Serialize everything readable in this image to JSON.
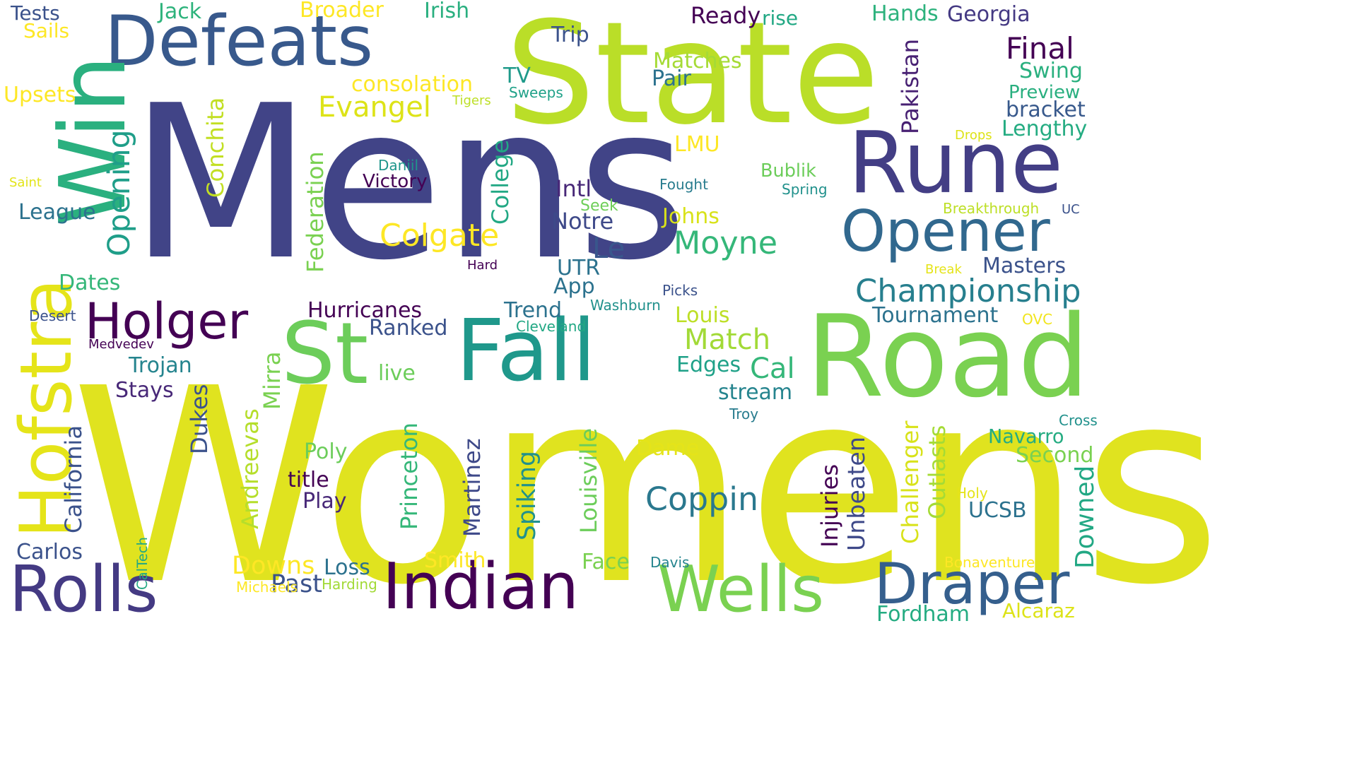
{
  "words": [
    {
      "text": "Mens",
      "color": "#414487"
    },
    {
      "text": "Womens",
      "color": "#e0e31f"
    },
    {
      "text": "State",
      "color": "#bade28"
    },
    {
      "text": "Defeats",
      "color": "#38598c"
    },
    {
      "text": "Rune",
      "color": "#433e85"
    },
    {
      "text": "Road",
      "color": "#7ad151"
    },
    {
      "text": "Fall",
      "color": "#1f988b"
    },
    {
      "text": "St",
      "color": "#6ccd5a"
    },
    {
      "text": "Win",
      "color": "#2ab07f"
    },
    {
      "text": "Hofstra",
      "color": "#e5e419"
    },
    {
      "text": "Opener",
      "color": "#31688e"
    },
    {
      "text": "Indian",
      "color": "#440154"
    },
    {
      "text": "Rolls",
      "color": "#443a83"
    },
    {
      "text": "Draper",
      "color": "#355f8d"
    },
    {
      "text": "Wells",
      "color": "#7ad151"
    },
    {
      "text": "Holger",
      "color": "#440154"
    },
    {
      "text": "Championship",
      "color": "#277f8e"
    },
    {
      "text": "Coppin",
      "color": "#2a788e"
    },
    {
      "text": "Colgate",
      "color": "#fde725"
    },
    {
      "text": "Moyne",
      "color": "#35b779"
    },
    {
      "text": "Evangel",
      "color": "#dde318"
    },
    {
      "text": "Final",
      "color": "#440154"
    },
    {
      "text": "Match",
      "color": "#a2da37"
    },
    {
      "text": "Tests",
      "color": "#3b528b"
    },
    {
      "text": "Jack",
      "color": "#2eb37c"
    },
    {
      "text": "Broader",
      "color": "#fde725"
    },
    {
      "text": "Irish",
      "color": "#29af7f"
    },
    {
      "text": "Ready",
      "color": "#440154"
    },
    {
      "text": "rise",
      "color": "#22a884"
    },
    {
      "text": "Hands",
      "color": "#2db27d"
    },
    {
      "text": "Georgia",
      "color": "#443983"
    },
    {
      "text": "Sails",
      "color": "#fde725"
    },
    {
      "text": "Trip",
      "color": "#3b528b"
    },
    {
      "text": "Matches",
      "color": "#a5db36"
    },
    {
      "text": "Pair",
      "color": "#2c728e"
    },
    {
      "text": "Swing",
      "color": "#2ab07f"
    },
    {
      "text": "Preview",
      "color": "#29af7f"
    },
    {
      "text": "bracket",
      "color": "#38598c"
    },
    {
      "text": "Lengthy",
      "color": "#25ac82"
    },
    {
      "text": "consolation",
      "color": "#fde725"
    },
    {
      "text": "TV",
      "color": "#1f9a8a"
    },
    {
      "text": "Sweeps",
      "color": "#1fa188"
    },
    {
      "text": "Tigers",
      "color": "#bddf26"
    },
    {
      "text": "Upsets",
      "color": "#fde725"
    },
    {
      "text": "Pakistan",
      "color": "#482173"
    },
    {
      "text": "Drops",
      "color": "#dde318"
    },
    {
      "text": "Conchita",
      "color": "#c2df23"
    },
    {
      "text": "Opening",
      "color": "#1f9e89"
    },
    {
      "text": "Federation",
      "color": "#7ad151"
    },
    {
      "text": "College",
      "color": "#22a884"
    },
    {
      "text": "LMU",
      "color": "#fde725"
    },
    {
      "text": "Daniil",
      "color": "#1f968b"
    },
    {
      "text": "Victory",
      "color": "#440154"
    },
    {
      "text": "Intl",
      "color": "#482878"
    },
    {
      "text": "Fought",
      "color": "#287c8e"
    },
    {
      "text": "Bublik",
      "color": "#6ccd5a"
    },
    {
      "text": "Spring",
      "color": "#21918c"
    },
    {
      "text": "Saint",
      "color": "#e2e418"
    },
    {
      "text": "League",
      "color": "#2c728e"
    },
    {
      "text": "Seek",
      "color": "#6ece58"
    },
    {
      "text": "Notre",
      "color": "#3e4989"
    },
    {
      "text": "Johns",
      "color": "#d8e219"
    },
    {
      "text": "Breakthrough",
      "color": "#bddf26"
    },
    {
      "text": "UC",
      "color": "#3b528b"
    },
    {
      "text": "Le",
      "color": "#39568c"
    },
    {
      "text": "Hard",
      "color": "#440154"
    },
    {
      "text": "UTR",
      "color": "#2c728e"
    },
    {
      "text": "Break",
      "color": "#e5e419"
    },
    {
      "text": "Masters",
      "color": "#3b528b"
    },
    {
      "text": "Dates",
      "color": "#35b779"
    },
    {
      "text": "App",
      "color": "#2c728e"
    },
    {
      "text": "Picks",
      "color": "#3b528b"
    },
    {
      "text": "Desert",
      "color": "#3b528b"
    },
    {
      "text": "Hurricanes",
      "color": "#440154"
    },
    {
      "text": "Trend",
      "color": "#2c728e"
    },
    {
      "text": "Washburn",
      "color": "#21918c"
    },
    {
      "text": "Louis",
      "color": "#bddf26"
    },
    {
      "text": "Tournament",
      "color": "#2c728e"
    },
    {
      "text": "OVC",
      "color": "#f1e51d"
    },
    {
      "text": "Ranked",
      "color": "#3b528b"
    },
    {
      "text": "Cleveland",
      "color": "#22a884"
    },
    {
      "text": "Medvedev",
      "color": "#440154"
    },
    {
      "text": "Trojan",
      "color": "#25848e"
    },
    {
      "text": "live",
      "color": "#6ccd5a"
    },
    {
      "text": "Edges",
      "color": "#1fa188"
    },
    {
      "text": "Cal",
      "color": "#35b779"
    },
    {
      "text": "stream",
      "color": "#25848e"
    },
    {
      "text": "Stays",
      "color": "#482878"
    },
    {
      "text": "Dukes",
      "color": "#3b528b"
    },
    {
      "text": "Mirra",
      "color": "#7ad151"
    },
    {
      "text": "Andreevas",
      "color": "#b5de2b"
    },
    {
      "text": "California",
      "color": "#3b528b"
    },
    {
      "text": "Princeton",
      "color": "#35b779"
    },
    {
      "text": "Martinez",
      "color": "#3e4989"
    },
    {
      "text": "Spiking",
      "color": "#21918c"
    },
    {
      "text": "Louisville",
      "color": "#6ccd5a"
    },
    {
      "text": "Injuries",
      "color": "#440154"
    },
    {
      "text": "Unbeaten",
      "color": "#3e4989"
    },
    {
      "text": "Challenger",
      "color": "#d8e219"
    },
    {
      "text": "Outlasts",
      "color": "#a5db36"
    },
    {
      "text": "Troy",
      "color": "#287c8e"
    },
    {
      "text": "Navarro",
      "color": "#25ac82"
    },
    {
      "text": "Second",
      "color": "#7ad151"
    },
    {
      "text": "Cross",
      "color": "#21918c"
    },
    {
      "text": "Poly",
      "color": "#6ccd5a"
    },
    {
      "text": "Dame",
      "color": "#e5e419"
    },
    {
      "text": "title",
      "color": "#440154"
    },
    {
      "text": "Play",
      "color": "#482878"
    },
    {
      "text": "Holy",
      "color": "#e5e419"
    },
    {
      "text": "UCSB",
      "color": "#2c728e"
    },
    {
      "text": "Downed",
      "color": "#22a884"
    },
    {
      "text": "Carlos",
      "color": "#3b528b"
    },
    {
      "text": "CalTech",
      "color": "#22a884"
    },
    {
      "text": "Downs",
      "color": "#fde725"
    },
    {
      "text": "Loss",
      "color": "#2c728e"
    },
    {
      "text": "Smith",
      "color": "#fde725"
    },
    {
      "text": "Face",
      "color": "#7ad151"
    },
    {
      "text": "Davis",
      "color": "#25848e"
    },
    {
      "text": "Past",
      "color": "#3b528b"
    },
    {
      "text": "Michaels",
      "color": "#fde725"
    },
    {
      "text": "Harding",
      "color": "#a2da37"
    },
    {
      "text": "Bonaventure",
      "color": "#fde725"
    },
    {
      "text": "Fordham",
      "color": "#25ac82"
    },
    {
      "text": "Alcaraz",
      "color": "#dde318"
    }
  ]
}
